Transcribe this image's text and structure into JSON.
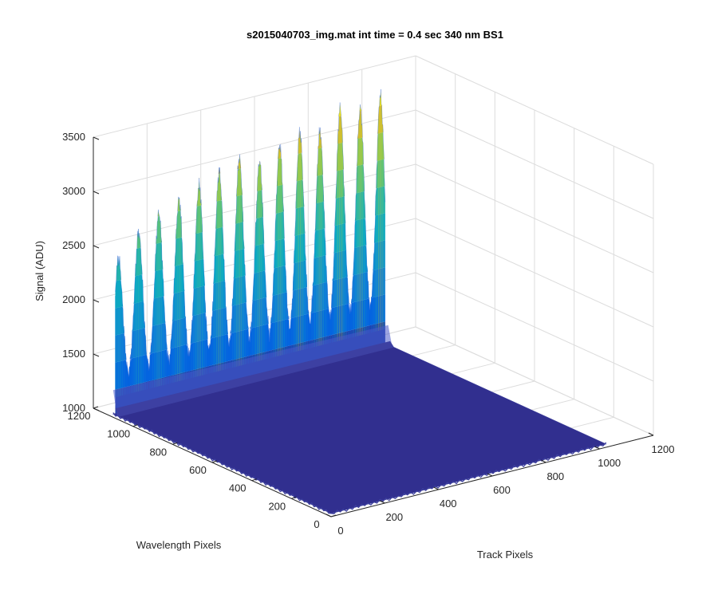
{
  "chart_data": {
    "type": "surface",
    "title": "s2015040703_img.mat int time = 0.4 sec  340 nm BS1",
    "xlabel": "Track Pixels",
    "ylabel": "Wavelength Pixels",
    "zlabel": "Signal (ADU)",
    "xlim": [
      0,
      1200
    ],
    "ylim": [
      0,
      1200
    ],
    "zlim": [
      1000,
      3500
    ],
    "xticks": [
      "0",
      "200",
      "400",
      "600",
      "800",
      "1000",
      "1200"
    ],
    "yticks": [
      "0",
      "200",
      "400",
      "600",
      "800",
      "1000",
      "1200"
    ],
    "zticks": [
      "1000",
      "1500",
      "2000",
      "2500",
      "3000",
      "3500"
    ],
    "colormap": "parula",
    "grid": true,
    "floor_level": 1030,
    "data_extent": {
      "track_pixels": [
        0,
        1024
      ],
      "wavelength_pixels": [
        0,
        1100
      ]
    },
    "peak_ridge": {
      "wavelength_pixel": 1100,
      "track_pixels": [
        20,
        95,
        170,
        245,
        320,
        395,
        470,
        545,
        620,
        695,
        770,
        845,
        920,
        995
      ],
      "peak_signal": [
        2450,
        2650,
        2780,
        2860,
        2940,
        3020,
        3100,
        3020,
        3120,
        3200,
        3160,
        3330,
        3280,
        3350
      ],
      "trough_signal": 1300
    }
  }
}
